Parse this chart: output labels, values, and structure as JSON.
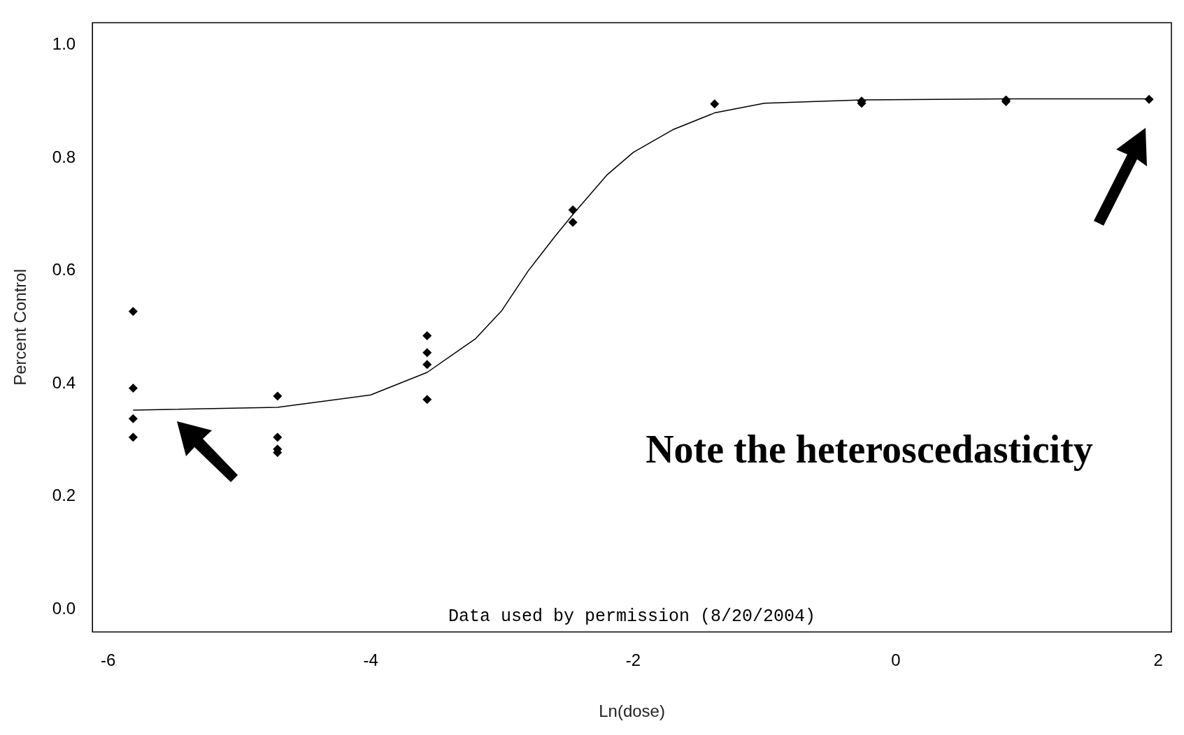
{
  "chart_data": {
    "type": "scatter",
    "xlabel": "Ln(dose)",
    "ylabel": "Percent Control",
    "xlim": [
      -6.12,
      2.1
    ],
    "ylim": [
      -0.04,
      1.04
    ],
    "xticks": [
      -6,
      -4,
      -2,
      0,
      2
    ],
    "yticks": [
      {
        "value": 0,
        "label": "0.0"
      },
      0.2,
      0.4,
      0.6,
      0.8,
      {
        "value": 1,
        "label": "1.0"
      }
    ],
    "grid": false,
    "legend": false,
    "annotations": [
      "Note the heteroscedasticity",
      "Data used by permission (8/20/2004)"
    ],
    "series": [
      {
        "type": "scatter",
        "color": "#000000",
        "marker": "diamond",
        "x": [
          -5.81,
          -5.81,
          -5.81,
          -5.81,
          -4.71,
          -4.71,
          -4.71,
          -4.71,
          -3.57,
          -3.57,
          -3.57,
          -3.57,
          -2.46,
          -2.46,
          -1.38,
          -0.26,
          -0.26,
          0.84,
          0.84,
          1.93
        ],
        "values": [
          0.528,
          0.392,
          0.338,
          0.305,
          0.378,
          0.305,
          0.284,
          0.278,
          0.485,
          0.455,
          0.434,
          0.372,
          0.708,
          0.686,
          0.896,
          0.901,
          0.897,
          0.903,
          0.9,
          0.904
        ]
      },
      {
        "type": "line",
        "color": "#000000",
        "marker": "none",
        "line_style": "solid",
        "x": [
          -5.81,
          -4.71,
          -4.0,
          -3.57,
          -3.2,
          -3.0,
          -2.8,
          -2.6,
          -2.46,
          -2.2,
          -2.0,
          -1.7,
          -1.38,
          -1.0,
          -0.26,
          0.84,
          1.93
        ],
        "values": [
          0.353,
          0.358,
          0.38,
          0.42,
          0.48,
          0.53,
          0.6,
          0.66,
          0.7,
          0.77,
          0.81,
          0.85,
          0.88,
          0.897,
          0.903,
          0.905,
          0.905
        ]
      }
    ]
  }
}
